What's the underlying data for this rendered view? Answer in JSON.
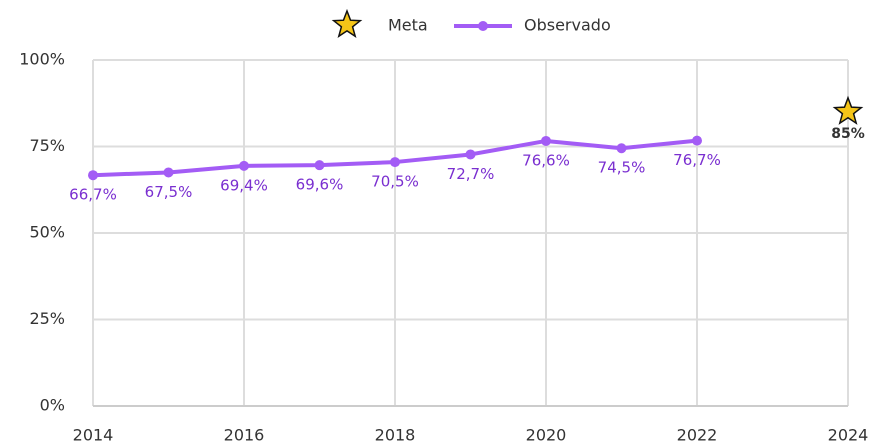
{
  "chart_data": {
    "type": "line",
    "series": [
      {
        "name": "Meta",
        "marker": "star",
        "color": "#f5c518",
        "x": [
          2024
        ],
        "values": [
          85
        ],
        "value_labels": [
          "85%"
        ]
      },
      {
        "name": "Observado",
        "marker": "line",
        "color": "#a35cf5",
        "x": [
          2014,
          2015,
          2016,
          2017,
          2018,
          2019,
          2020,
          2021,
          2022
        ],
        "values": [
          66.7,
          67.5,
          69.4,
          69.6,
          70.5,
          72.7,
          76.6,
          74.5,
          76.7
        ],
        "value_labels": [
          "66,7%",
          "67,5%",
          "69,4%",
          "69,6%",
          "70,5%",
          "72,7%",
          "76,6%",
          "74,5%",
          "76,7%"
        ]
      }
    ],
    "xlim": [
      2014,
      2024
    ],
    "xticks": [
      2014,
      2016,
      2018,
      2020,
      2022,
      2024
    ],
    "ylim": [
      0,
      100
    ],
    "yticks": [
      {
        "value": 0,
        "label": "0%"
      },
      {
        "value": 25,
        "label": "25%"
      },
      {
        "value": 50,
        "label": "50%"
      },
      {
        "value": 75,
        "label": "75%"
      },
      {
        "value": 100,
        "label": "100%"
      }
    ],
    "grid": true,
    "legend": "top"
  }
}
